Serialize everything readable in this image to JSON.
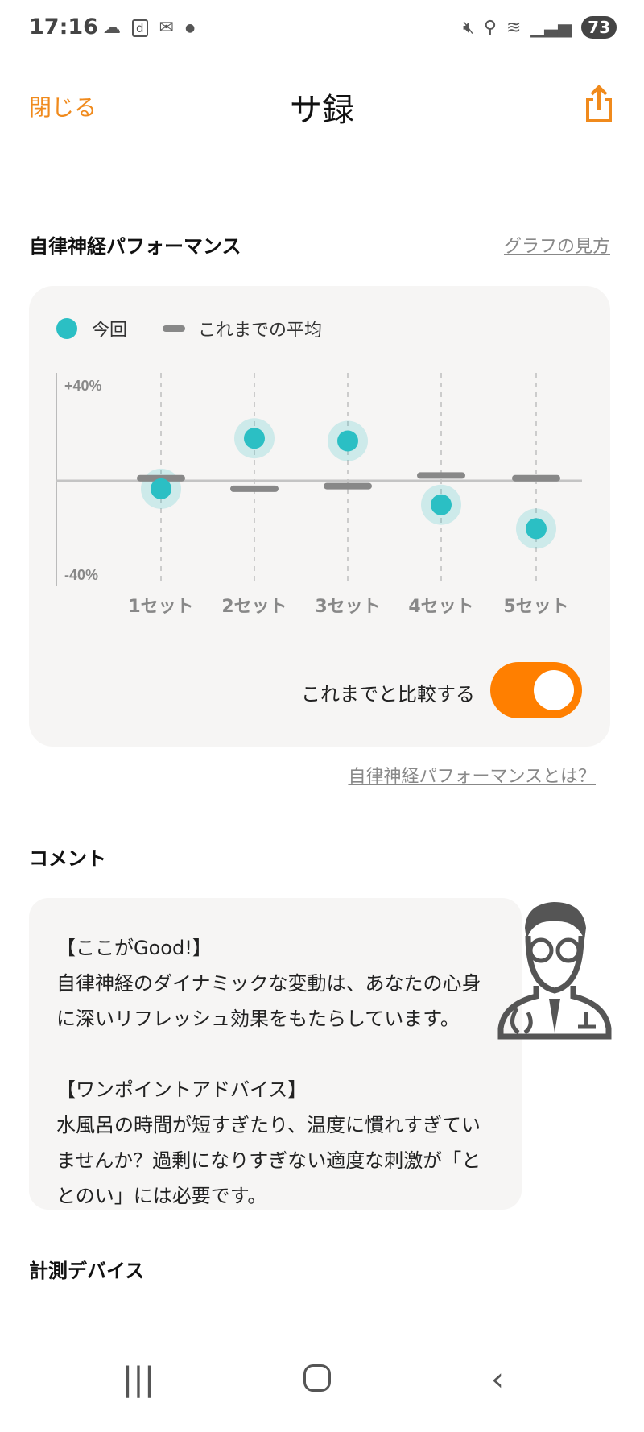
{
  "status_bar": {
    "time": "17:16",
    "battery": "73",
    "icons": [
      "cloud-icon",
      "d-app-icon",
      "mail-icon",
      "dot-icon",
      "mute-icon",
      "location-icon",
      "wifi-icon",
      "signal-icon"
    ]
  },
  "header": {
    "close_label": "閉じる",
    "title": "サ録",
    "share_icon": "share-icon"
  },
  "performance": {
    "title": "自律神経パフォーマンス",
    "graph_help_link": "グラフの見方",
    "legend": {
      "current": "今回",
      "average": "これまでの平均"
    },
    "compare_label": "これまでと比較する",
    "compare_on": true,
    "about_link": "自律神経パフォーマンスとは？"
  },
  "chart_data": {
    "type": "scatter",
    "categories": [
      "1セット",
      "2セット",
      "3セット",
      "4セット",
      "5セット"
    ],
    "y_tick_labels": [
      "+40%",
      "-40%"
    ],
    "ylim": [
      -40,
      40
    ],
    "series": [
      {
        "name": "今回",
        "values": [
          -3,
          16,
          15,
          -9,
          -18
        ],
        "color": "#2bbfc4"
      },
      {
        "name": "これまでの平均",
        "values": [
          1,
          -3,
          -2,
          2,
          1
        ],
        "color": "#888888"
      }
    ],
    "grid": "vertical dashed"
  },
  "comment": {
    "title": "コメント",
    "text": "【ここがGood!】\n自律神経のダイナミックな変動は、あなたの心身に深いリフレッシュ効果をもたらしています。\n\n【ワンポイントアドバイス】\n水風呂の時間が短すぎたり、温度に慣れすぎていませんか？過剰になりすぎない適度な刺激が「ととのい」には必要です。"
  },
  "device": {
    "title": "計測デバイス"
  },
  "colors": {
    "accent": "#ff7f00",
    "teal": "#2bbfc4",
    "card": "#f6f5f4"
  }
}
